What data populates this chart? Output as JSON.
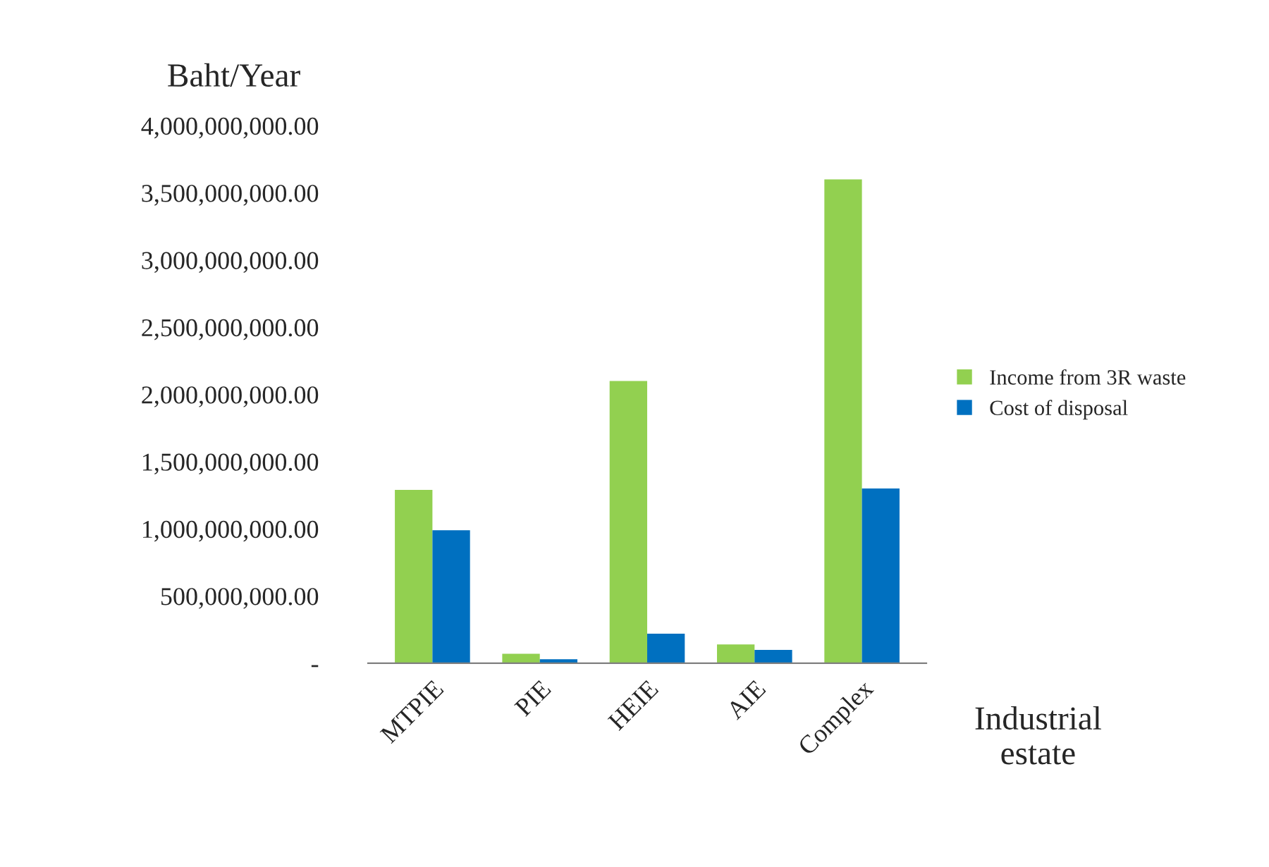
{
  "chart_data": {
    "type": "bar",
    "ylabel": "Baht/Year",
    "xlabel": "Industrial\nestate",
    "categories": [
      "MTPIE",
      "PIE",
      "HEIE",
      "AIE",
      "Complex"
    ],
    "series": [
      {
        "name": "Income from 3R waste",
        "color": "#92d050",
        "values": [
          1290000000,
          70000000,
          2100000000,
          140000000,
          3600000000
        ]
      },
      {
        "name": "Cost of disposal",
        "color": "#0070c0",
        "values": [
          990000000,
          30000000,
          220000000,
          100000000,
          1300000000
        ]
      }
    ],
    "ylim": [
      0,
      4000000000
    ],
    "yticks": [
      {
        "value": 0,
        "label": "-"
      },
      {
        "value": 500000000,
        "label": "500,000,000.00"
      },
      {
        "value": 1000000000,
        "label": "1,000,000,000.00"
      },
      {
        "value": 1500000000,
        "label": "1,500,000,000.00"
      },
      {
        "value": 2000000000,
        "label": "2,000,000,000.00"
      },
      {
        "value": 2500000000,
        "label": "2,500,000,000.00"
      },
      {
        "value": 3000000000,
        "label": "3,000,000,000.00"
      },
      {
        "value": 3500000000,
        "label": "3,500,000,000.00"
      },
      {
        "value": 4000000000,
        "label": "4,000,000,000.00"
      }
    ],
    "grid": false,
    "legend": "right"
  }
}
